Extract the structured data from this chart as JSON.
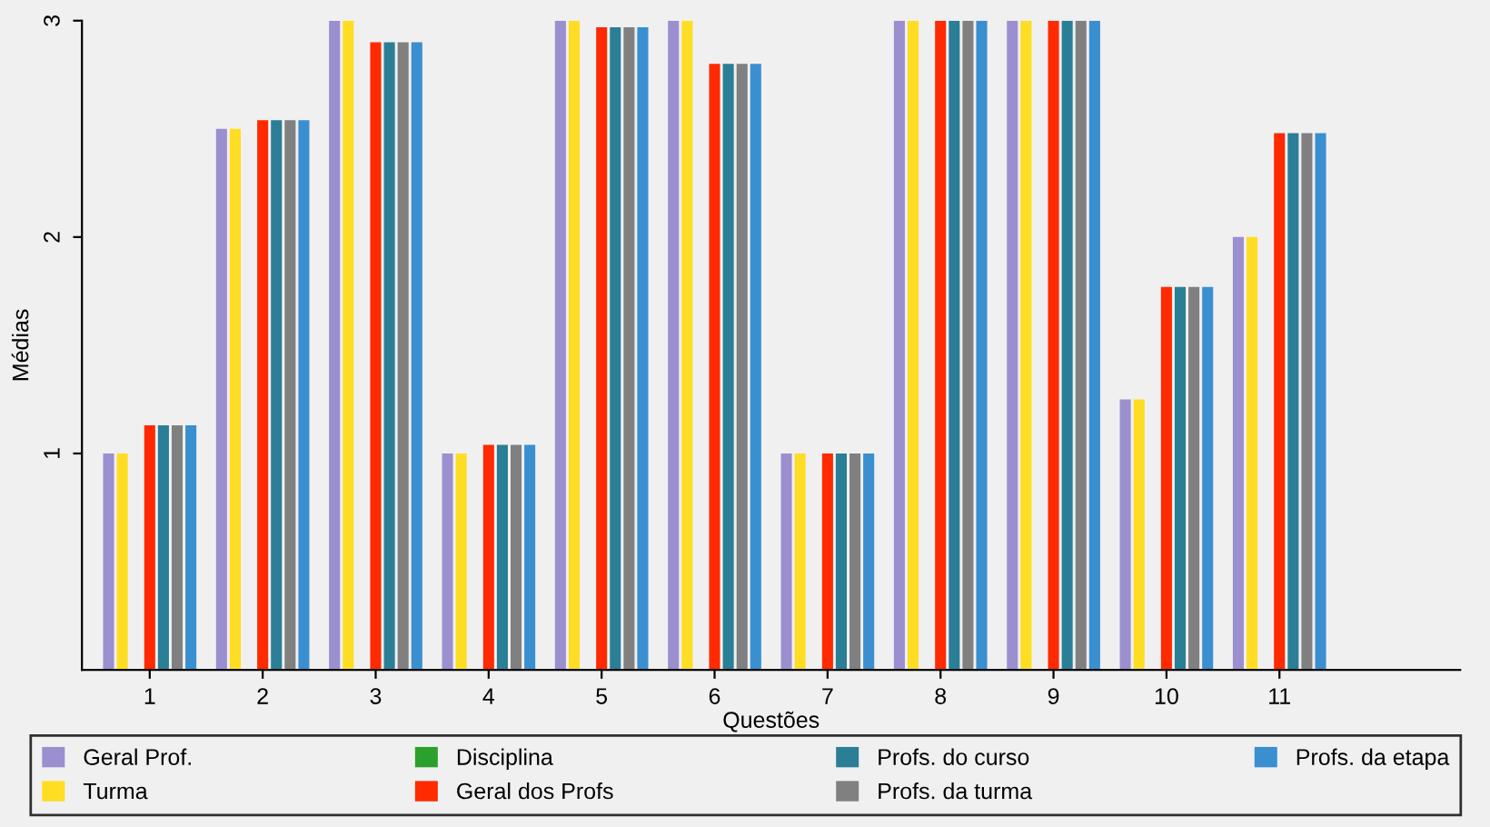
{
  "chart_data": {
    "type": "bar",
    "xlabel": "Questões",
    "ylabel": "Médias",
    "categories": [
      "1",
      "2",
      "3",
      "4",
      "5",
      "6",
      "7",
      "8",
      "9",
      "10",
      "11"
    ],
    "series": [
      {
        "name": "Geral Prof.",
        "color": "#9b8fd0",
        "values": [
          1.0,
          2.5,
          3.0,
          1.0,
          3.0,
          3.0,
          1.0,
          3.0,
          3.0,
          1.25,
          2.0
        ]
      },
      {
        "name": "Turma",
        "color": "#ffdd22",
        "values": [
          1.0,
          2.5,
          3.0,
          1.0,
          3.0,
          3.0,
          1.0,
          3.0,
          3.0,
          1.25,
          2.0
        ]
      },
      {
        "name": "Disciplina",
        "color": "#2ca02c",
        "values": [
          null,
          null,
          null,
          null,
          null,
          null,
          null,
          null,
          null,
          null,
          null
        ]
      },
      {
        "name": "Geral dos Profs",
        "color": "#ff2a00",
        "values": [
          1.13,
          2.54,
          2.9,
          1.04,
          2.97,
          2.8,
          1.0,
          3.0,
          3.0,
          1.77,
          2.48
        ]
      },
      {
        "name": "Profs. do curso",
        "color": "#2a7f96",
        "values": [
          1.13,
          2.54,
          2.9,
          1.04,
          2.97,
          2.8,
          1.0,
          3.0,
          3.0,
          1.77,
          2.48
        ]
      },
      {
        "name": "Profs. da turma",
        "color": "#808080",
        "values": [
          1.13,
          2.54,
          2.9,
          1.04,
          2.97,
          2.8,
          1.0,
          3.0,
          3.0,
          1.77,
          2.48
        ]
      },
      {
        "name": "Profs. da etapa",
        "color": "#3a8fd0",
        "values": [
          1.13,
          2.54,
          2.9,
          1.04,
          2.97,
          2.8,
          1.0,
          3.0,
          3.0,
          1.77,
          2.48
        ]
      }
    ],
    "ylim": [
      0,
      3
    ],
    "yticks": [
      1,
      2,
      3
    ],
    "grid": false,
    "legend": "bottom"
  }
}
